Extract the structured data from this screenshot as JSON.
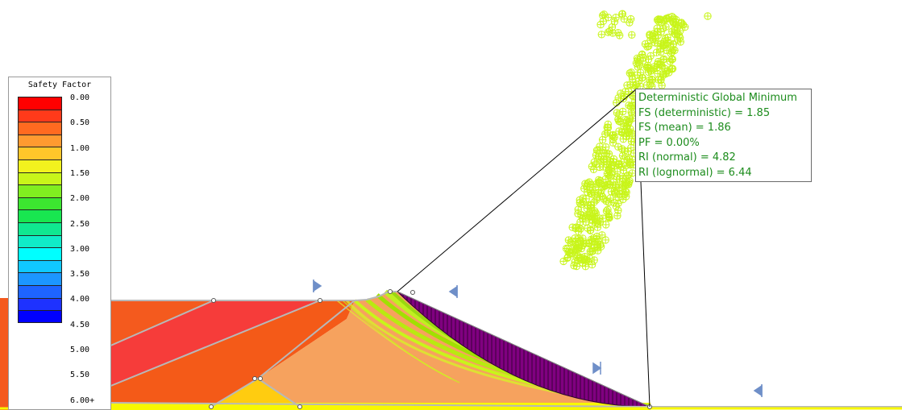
{
  "legend": {
    "title": "Safety Factor",
    "labels": [
      "0.00",
      "0.50",
      "1.00",
      "1.50",
      "2.00",
      "2.50",
      "3.00",
      "3.50",
      "4.00",
      "4.50",
      "5.00",
      "5.50",
      "6.00+"
    ],
    "colors": [
      "#ff0000",
      "#ff3a1a",
      "#ff6a20",
      "#ff9a30",
      "#ffc62a",
      "#f2f21e",
      "#c8f51a",
      "#80ee20",
      "#3ce630",
      "#18e650",
      "#10e890",
      "#10ecc8",
      "#00ffff",
      "#10c8ff",
      "#1c96ff",
      "#1e64ff",
      "#1e32ff",
      "#0000ff"
    ]
  },
  "info_box": {
    "lines": [
      "Deterministic Global Minimum",
      "FS (deterministic) = 1.85",
      "FS (mean) = 1.86",
      "PF = 0.00%",
      "RI (normal) = 4.82",
      "RI (lognormal) = 6.44"
    ],
    "text_color": "#1c8c1c"
  },
  "model": {
    "slip_surface_color": "#800080",
    "slip_fan_color": "#c8f51a",
    "scatter_color": "#c8f51a",
    "material_colors": [
      "#f45a1e",
      "#f25a20",
      "#f6a25e",
      "#ffcc00",
      "#f8f800"
    ]
  }
}
